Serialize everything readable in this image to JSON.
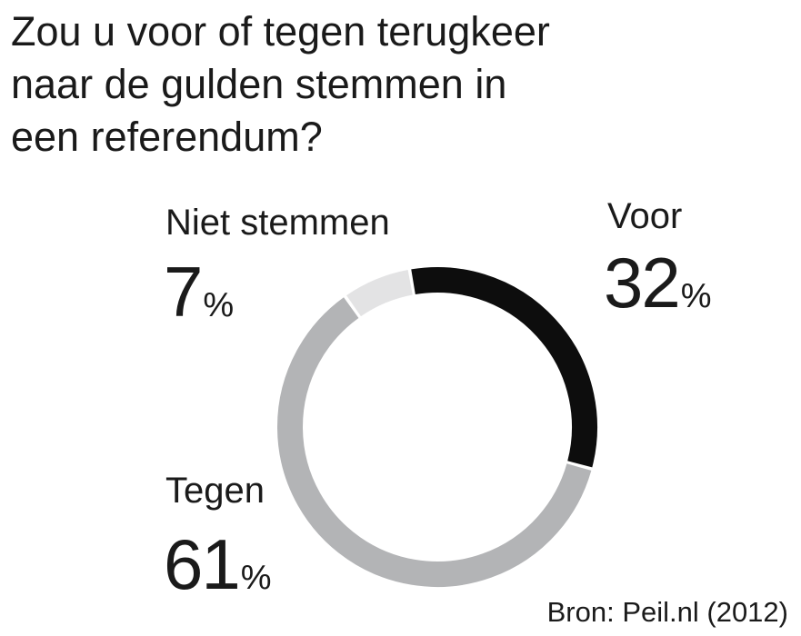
{
  "chart_data": {
    "type": "pie",
    "title_lines": [
      "Zou u voor of tegen terugkeer",
      "naar de gulden stemmen in",
      "een referendum?"
    ],
    "unit": "%",
    "segments": [
      {
        "label": "Voor",
        "value": 32,
        "color": "#0d0d0d"
      },
      {
        "label": "Tegen",
        "value": 61,
        "color": "#b3b4b6"
      },
      {
        "label": "Niet stemmen",
        "value": 7,
        "color": "#e3e3e4"
      }
    ],
    "source": "Bron: Peil.nl (2012)"
  }
}
